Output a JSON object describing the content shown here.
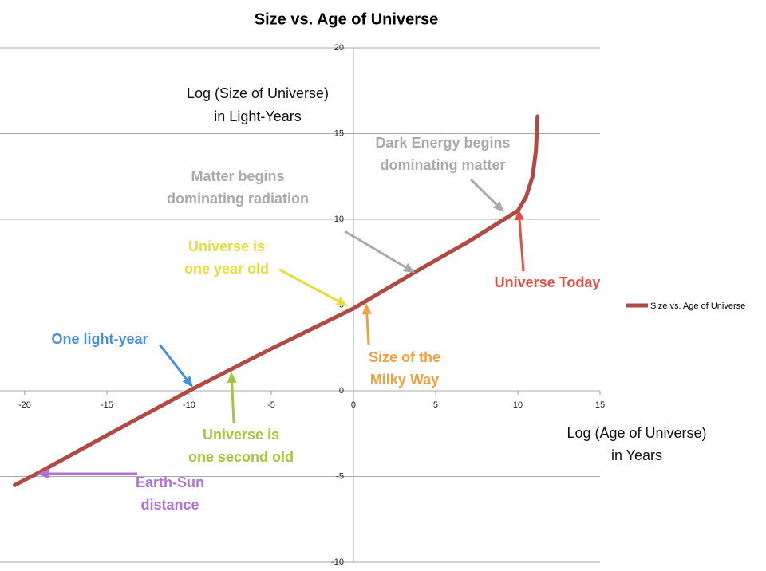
{
  "chart_data": {
    "type": "line",
    "title": "Size vs. Age of Universe",
    "x_label": [
      "Log (Age of Universe)",
      "in Years"
    ],
    "y_label": [
      "Log (Size of Universe)",
      "in Light-Years"
    ],
    "x": [
      -20.6,
      -19,
      -15,
      -10,
      -5,
      0,
      3.7,
      7,
      10,
      10.5,
      10.9,
      11.1,
      11.2
    ],
    "series": [
      {
        "name": "Size vs. Age of Universe",
        "color": "#b04a44",
        "values": [
          -5.5,
          -4.7,
          -2.6,
          0,
          2.45,
          4.8,
          6.9,
          8.7,
          10.5,
          11.3,
          12.5,
          14,
          16
        ]
      }
    ],
    "xlim": [
      -21.5,
      15
    ],
    "ylim": [
      -10,
      20
    ],
    "xticks": [
      -20,
      -15,
      -10,
      -5,
      0,
      5,
      10,
      15
    ],
    "yticks": [
      -10,
      -5,
      0,
      5,
      10,
      15,
      20
    ],
    "grid": true,
    "legend": "right",
    "annotations": [
      {
        "lines": [
          "Dark Energy begins",
          "dominating matter"
        ],
        "color": "#aaaaaa"
      },
      {
        "lines": [
          "Matter begins",
          "dominating radiation"
        ],
        "color": "#aaaaaa"
      },
      {
        "lines": [
          "Universe is",
          "one year old"
        ],
        "color": "#e6dc3c"
      },
      {
        "lines": [
          "Universe Today"
        ],
        "color": "#e05048"
      },
      {
        "lines": [
          "One light-year"
        ],
        "color": "#4a8fd8"
      },
      {
        "lines": [
          "Size of the",
          "Milky Way"
        ],
        "color": "#f0a040"
      },
      {
        "lines": [
          "Universe is",
          "one second old"
        ],
        "color": "#a4c63a"
      },
      {
        "lines": [
          "Earth-Sun",
          "distance"
        ],
        "color": "#b272d2"
      }
    ]
  }
}
